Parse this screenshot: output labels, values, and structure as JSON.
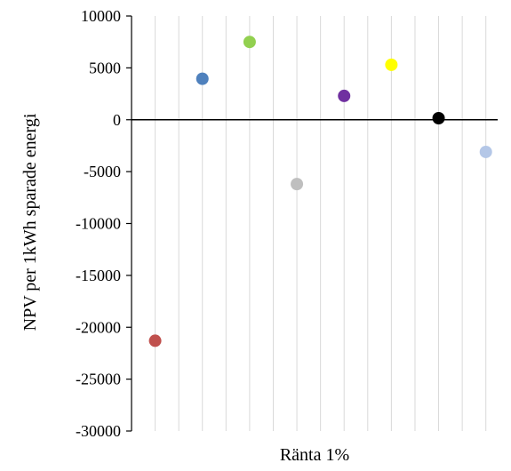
{
  "chart_data": {
    "type": "scatter",
    "title": "",
    "xlabel": "Ränta 1%",
    "ylabel": "NPV per 1kWh sparade energi",
    "ylim": [
      -30000,
      10000
    ],
    "yticks": [
      10000,
      5000,
      0,
      -5000,
      -10000,
      -15000,
      -20000,
      -25000,
      -30000
    ],
    "x_categories": 14,
    "grid": "vertical",
    "legend": "none",
    "points": [
      {
        "x": 1,
        "y": -21300,
        "color": "#C0504D"
      },
      {
        "x": 3,
        "y": 3950,
        "color": "#4F81BD"
      },
      {
        "x": 5,
        "y": 7500,
        "color": "#92D050"
      },
      {
        "x": 7,
        "y": -6200,
        "color": "#BFBFBF"
      },
      {
        "x": 9,
        "y": 2300,
        "color": "#7030A0"
      },
      {
        "x": 11,
        "y": 5300,
        "color": "#FFFF00"
      },
      {
        "x": 13,
        "y": 150,
        "color": "#000000"
      },
      {
        "x": 15,
        "y": -3100,
        "color": "#B4C7E7"
      }
    ]
  }
}
